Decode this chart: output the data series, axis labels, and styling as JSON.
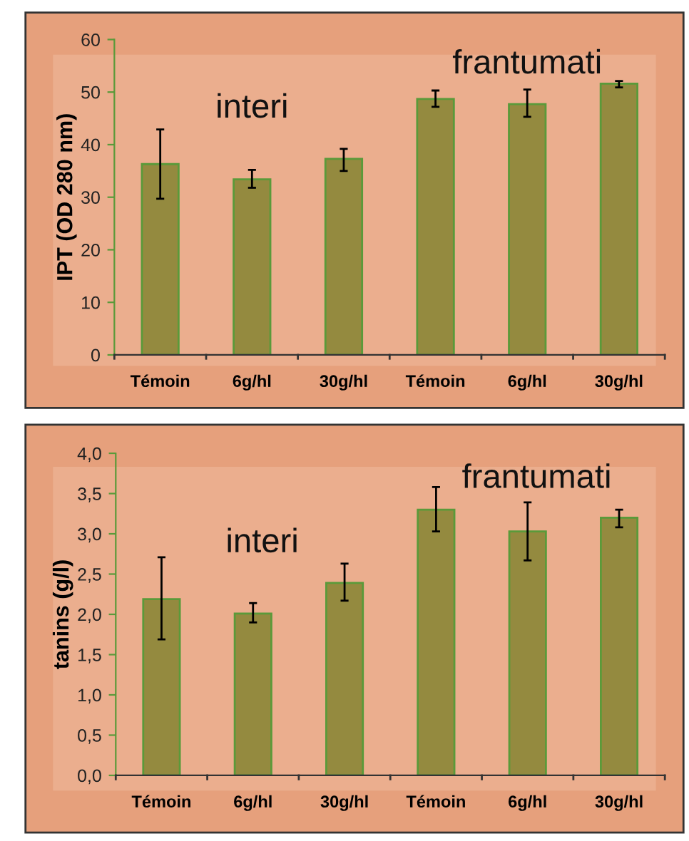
{
  "chart_data": [
    {
      "type": "bar",
      "ylabel": "IPT (OD 280 nm)",
      "categories": [
        "Témoin",
        "6g/hl",
        "30g/hl",
        "Témoin",
        "6g/hl",
        "30g/hl"
      ],
      "values": [
        36.3,
        33.4,
        37.3,
        48.7,
        47.7,
        51.6
      ],
      "errors": [
        [
          29.7,
          42.9
        ],
        [
          31.8,
          35.2
        ],
        [
          35.0,
          39.2
        ],
        [
          47.2,
          50.3
        ],
        [
          45.3,
          50.5
        ],
        [
          50.9,
          52.1
        ]
      ],
      "color": "#948a3f",
      "ylim": [
        0,
        60
      ],
      "yticks": [
        0,
        10,
        20,
        30,
        40,
        50,
        60
      ],
      "grid": false,
      "legend": false,
      "annotations": [
        "interi",
        "frantumati"
      ]
    },
    {
      "type": "bar",
      "ylabel": "tanins (g/l)",
      "categories": [
        "Témoin",
        "6g/hl",
        "30g/hl",
        "Témoin",
        "6g/hl",
        "30g/hl"
      ],
      "values": [
        2.19,
        2.01,
        2.39,
        3.3,
        3.03,
        3.2
      ],
      "errors": [
        [
          1.69,
          2.71
        ],
        [
          1.9,
          2.14
        ],
        [
          2.17,
          2.63
        ],
        [
          3.03,
          3.58
        ],
        [
          2.67,
          3.39
        ],
        [
          3.08,
          3.3
        ]
      ],
      "color": "#948a3f",
      "ylim": [
        0,
        4
      ],
      "yticks": [
        {
          "value": 0,
          "label": "0,0"
        },
        {
          "value": 0.5,
          "label": "0,5"
        },
        {
          "value": 1,
          "label": "1,0"
        },
        {
          "value": 1.5,
          "label": "1,5"
        },
        {
          "value": 2,
          "label": "2,0"
        },
        {
          "value": 2.5,
          "label": "2,5"
        },
        {
          "value": 3,
          "label": "3,0"
        },
        {
          "value": 3.5,
          "label": "3,5"
        },
        {
          "value": 4,
          "label": "4,0"
        }
      ],
      "grid": false,
      "legend": false,
      "annotations": [
        "interi",
        "frantumati"
      ]
    }
  ]
}
